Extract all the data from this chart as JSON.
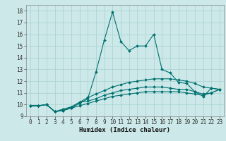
{
  "xlabel": "Humidex (Indice chaleur)",
  "xlim": [
    -0.5,
    23.5
  ],
  "ylim": [
    9,
    18.5
  ],
  "yticks": [
    9,
    10,
    11,
    12,
    13,
    14,
    15,
    16,
    17,
    18
  ],
  "xticks": [
    0,
    1,
    2,
    3,
    4,
    5,
    6,
    7,
    8,
    9,
    10,
    11,
    12,
    13,
    14,
    15,
    16,
    17,
    18,
    19,
    20,
    21,
    22,
    23
  ],
  "background_color": "#cce8e8",
  "line_color": "#007070",
  "grid_color": "#a8d0d0",
  "series": [
    {
      "x": [
        0,
        1,
        2,
        3,
        4,
        5,
        6,
        7,
        8,
        9,
        10,
        11,
        12,
        13,
        14,
        15,
        16,
        17,
        18,
        19,
        20,
        21,
        22,
        23
      ],
      "y": [
        9.9,
        9.9,
        10.0,
        9.4,
        9.5,
        9.7,
        10.1,
        10.5,
        12.8,
        15.5,
        17.9,
        15.4,
        14.6,
        15.0,
        15.0,
        16.0,
        13.0,
        12.7,
        11.9,
        11.8,
        11.1,
        10.7,
        11.4,
        11.3
      ]
    },
    {
      "x": [
        0,
        1,
        2,
        3,
        4,
        5,
        6,
        7,
        8,
        9,
        10,
        11,
        12,
        13,
        14,
        15,
        16,
        17,
        18,
        19,
        20,
        21,
        22,
        23
      ],
      "y": [
        9.9,
        9.9,
        10.0,
        9.4,
        9.6,
        9.8,
        10.2,
        10.6,
        10.9,
        11.2,
        11.5,
        11.7,
        11.9,
        12.0,
        12.1,
        12.2,
        12.2,
        12.2,
        12.1,
        12.0,
        11.8,
        11.5,
        11.4,
        11.3
      ]
    },
    {
      "x": [
        0,
        1,
        2,
        3,
        4,
        5,
        6,
        7,
        8,
        9,
        10,
        11,
        12,
        13,
        14,
        15,
        16,
        17,
        18,
        19,
        20,
        21,
        22,
        23
      ],
      "y": [
        9.9,
        9.9,
        10.0,
        9.4,
        9.6,
        9.8,
        10.2,
        10.3,
        10.5,
        10.8,
        11.0,
        11.2,
        11.3,
        11.4,
        11.5,
        11.5,
        11.5,
        11.4,
        11.3,
        11.3,
        11.1,
        10.9,
        11.0,
        11.3
      ]
    },
    {
      "x": [
        0,
        1,
        2,
        3,
        4,
        5,
        6,
        7,
        8,
        9,
        10,
        11,
        12,
        13,
        14,
        15,
        16,
        17,
        18,
        19,
        20,
        21,
        22,
        23
      ],
      "y": [
        9.9,
        9.9,
        10.0,
        9.4,
        9.5,
        9.7,
        9.9,
        10.1,
        10.3,
        10.5,
        10.7,
        10.8,
        10.9,
        11.0,
        11.1,
        11.1,
        11.1,
        11.1,
        11.1,
        11.0,
        10.9,
        10.8,
        11.0,
        11.3
      ]
    }
  ]
}
